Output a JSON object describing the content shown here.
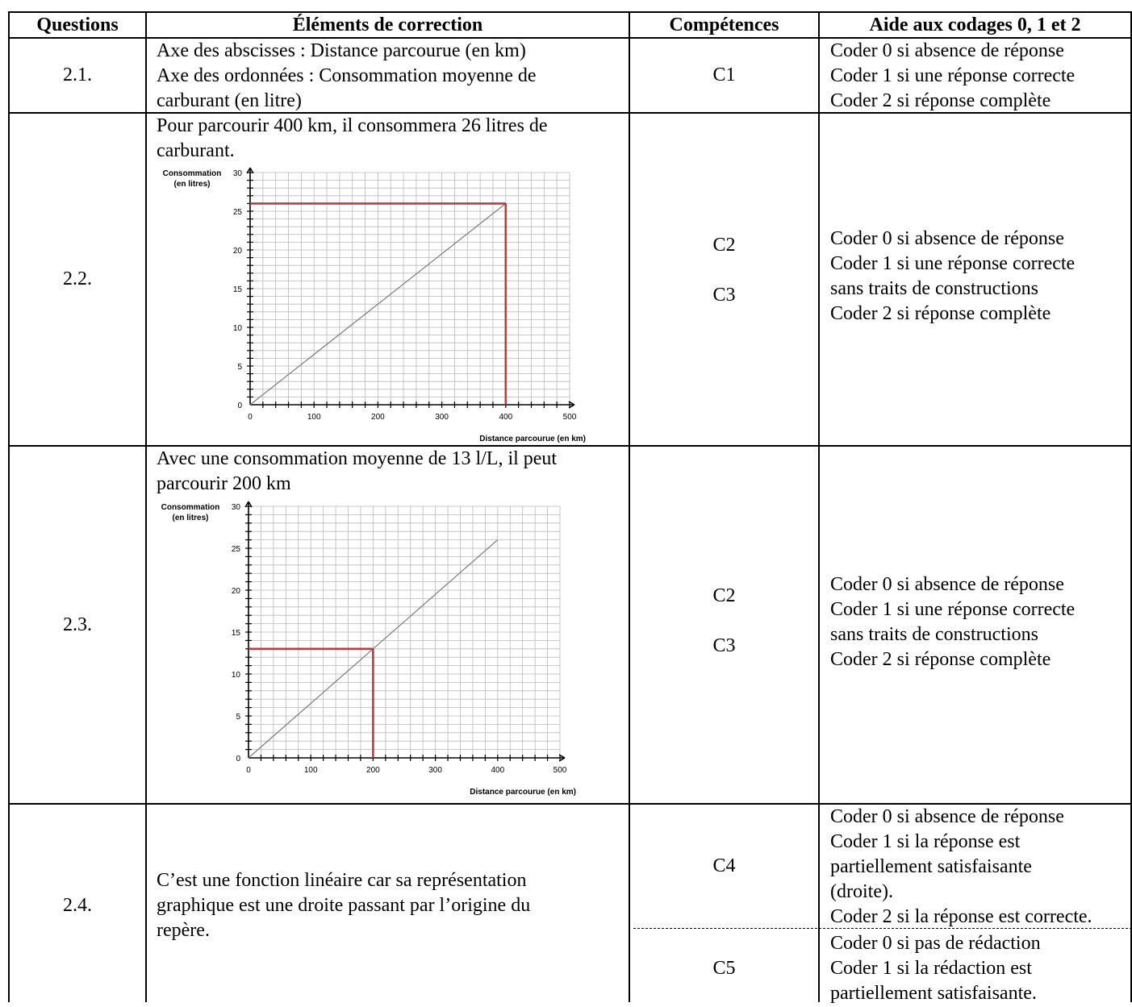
{
  "header": {
    "questions": "Questions",
    "elements": "Éléments de correction",
    "competences": "Compétences",
    "aide": "Aide aux codages 0, 1 et 2"
  },
  "rows": [
    {
      "question": "2.1.",
      "element": "Axe des abscisses : Distance parcourue (en km)\nAxe des ordonnées : Consommation moyenne de\ncarburant (en litre)",
      "competence": "C1",
      "aide": "Coder 0 si absence de réponse\nCoder 1 si une réponse correcte\nCoder 2 si réponse complète"
    },
    {
      "question": "2.2.",
      "element": "Pour parcourir 400 km, il consommera 26 litres de\ncarburant.",
      "competence": "C2\nC3",
      "aide": "Coder 0 si absence de réponse\nCoder 1 si une réponse correcte\nsans traits de constructions\nCoder 2 si réponse complète"
    },
    {
      "question": "2.3.",
      "element": "Avec une consommation moyenne de 13 l/L, il peut\nparcourir 200 km",
      "competence": "C2\nC3",
      "aide": "Coder 0 si absence de réponse\nCoder 1 si une réponse correcte\nsans traits de constructions\nCoder 2 si réponse complète"
    },
    {
      "question": "2.4.",
      "element": "C’est une fonction linéaire car sa représentation\ngraphique est une droite passant par l’origine du\nrepère.",
      "competence_a": "C4",
      "aide_a": "Coder 0 si absence de réponse\nCoder 1 si la réponse est\npartiellement satisfaisante\n(droite).\nCoder 2 si la réponse est correcte.",
      "competence_b": "C5",
      "aide_b": "Coder 0 si pas de rédaction\nCoder 1 si la rédaction est\npartiellement satisfaisante."
    }
  ],
  "chart_data": [
    {
      "type": "line",
      "ylabel_line1": "Consommation",
      "ylabel_line2": "(en litres)",
      "xlabel": "Distance parcourue (en km)",
      "x_ticks": [
        "0",
        "100",
        "200",
        "300",
        "400",
        "500"
      ],
      "y_ticks": [
        "0",
        "5",
        "10",
        "15",
        "20",
        "25",
        "30"
      ],
      "xlim": [
        0,
        500
      ],
      "ylim": [
        0,
        30
      ],
      "grid": true,
      "line": {
        "x": [
          0,
          400
        ],
        "y": [
          0,
          26
        ]
      },
      "construction": {
        "x": 400,
        "y": 26,
        "color": "#c0393b"
      }
    },
    {
      "type": "line",
      "ylabel_line1": "Consommation",
      "ylabel_line2": "(en litres)",
      "xlabel": "Distance parcourue (en km)",
      "x_ticks": [
        "0",
        "100",
        "200",
        "300",
        "400",
        "500"
      ],
      "y_ticks": [
        "0",
        "5",
        "10",
        "15",
        "20",
        "25",
        "30"
      ],
      "xlim": [
        0,
        500
      ],
      "ylim": [
        0,
        30
      ],
      "grid": true,
      "line": {
        "x": [
          0,
          400
        ],
        "y": [
          0,
          26
        ]
      },
      "construction": {
        "x": 200,
        "y": 13,
        "color": "#c0393b"
      }
    }
  ]
}
